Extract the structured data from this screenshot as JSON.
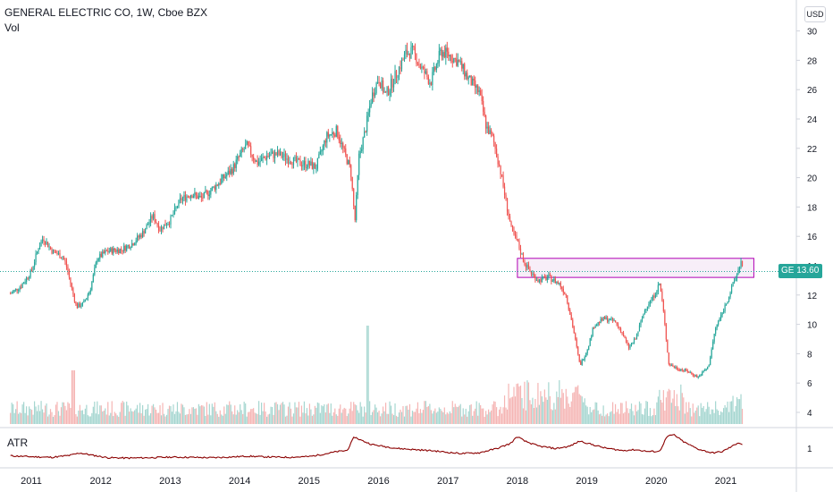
{
  "header": {
    "symbol_line": "GENERAL ELECTRIC CO, 1W, Cboe BZX",
    "volume_label": "Vol",
    "currency": "USD"
  },
  "price_tag": {
    "symbol": "GE",
    "value": "13.60",
    "text": "GE  13.60"
  },
  "atr": {
    "label": "ATR",
    "tick_label": "1"
  },
  "chart_data": {
    "type": "candlestick",
    "y_ticks": [
      "4",
      "6",
      "8",
      "10",
      "12",
      "14",
      "16",
      "18",
      "20",
      "22",
      "24",
      "26",
      "28",
      "30"
    ],
    "x_ticks": [
      "2011",
      "2012",
      "2013",
      "2014",
      "2015",
      "2016",
      "2017",
      "2018",
      "2019",
      "2020",
      "2021"
    ],
    "ylim": [
      3,
      31
    ],
    "colors": {
      "up": "#26a69a",
      "down": "#ef5350",
      "box_fill": "#f3e5f5",
      "box_border": "#b000b5",
      "atr_line": "#8b0000"
    },
    "resistance_zone": {
      "low": 13.2,
      "high": 14.5,
      "x_start": 2018.0,
      "x_end": 2021.25
    },
    "last_price": 13.6,
    "price_path": [
      [
        2010.7,
        12.1
      ],
      [
        2010.85,
        12.6
      ],
      [
        2011.0,
        13.6
      ],
      [
        2011.1,
        15.2
      ],
      [
        2011.17,
        15.9
      ],
      [
        2011.3,
        15.0
      ],
      [
        2011.45,
        14.6
      ],
      [
        2011.5,
        14.1
      ],
      [
        2011.58,
        12.5
      ],
      [
        2011.65,
        11.2
      ],
      [
        2011.75,
        11.4
      ],
      [
        2011.85,
        12.4
      ],
      [
        2011.95,
        14.5
      ],
      [
        2012.1,
        15.0
      ],
      [
        2012.3,
        15.1
      ],
      [
        2012.45,
        15.5
      ],
      [
        2012.6,
        16.2
      ],
      [
        2012.75,
        17.4
      ],
      [
        2012.85,
        16.5
      ],
      [
        2013.0,
        17.1
      ],
      [
        2013.15,
        18.5
      ],
      [
        2013.3,
        18.9
      ],
      [
        2013.45,
        18.6
      ],
      [
        2013.6,
        19.2
      ],
      [
        2013.75,
        19.9
      ],
      [
        2013.9,
        20.6
      ],
      [
        2014.0,
        21.5
      ],
      [
        2014.1,
        22.2
      ],
      [
        2014.25,
        21.0
      ],
      [
        2014.4,
        21.5
      ],
      [
        2014.55,
        21.6
      ],
      [
        2014.7,
        21.3
      ],
      [
        2014.85,
        21.0
      ],
      [
        2015.0,
        20.9
      ],
      [
        2015.1,
        20.7
      ],
      [
        2015.25,
        22.8
      ],
      [
        2015.4,
        23.2
      ],
      [
        2015.5,
        21.8
      ],
      [
        2015.6,
        20.5
      ],
      [
        2015.66,
        17.0
      ],
      [
        2015.72,
        21.5
      ],
      [
        2015.8,
        23.0
      ],
      [
        2015.9,
        25.5
      ],
      [
        2016.0,
        26.8
      ],
      [
        2016.1,
        25.6
      ],
      [
        2016.25,
        27.0
      ],
      [
        2016.4,
        28.5
      ],
      [
        2016.5,
        28.6
      ],
      [
        2016.6,
        27.6
      ],
      [
        2016.75,
        26.5
      ],
      [
        2016.9,
        28.6
      ],
      [
        2017.0,
        28.4
      ],
      [
        2017.15,
        27.9
      ],
      [
        2017.3,
        26.7
      ],
      [
        2017.45,
        25.8
      ],
      [
        2017.55,
        23.5
      ],
      [
        2017.65,
        22.6
      ],
      [
        2017.75,
        20.6
      ],
      [
        2017.85,
        18.0
      ],
      [
        2017.92,
        16.3
      ],
      [
        2018.0,
        15.6
      ],
      [
        2018.1,
        14.2
      ],
      [
        2018.2,
        13.5
      ],
      [
        2018.3,
        13.0
      ],
      [
        2018.45,
        13.2
      ],
      [
        2018.6,
        12.8
      ],
      [
        2018.7,
        12.0
      ],
      [
        2018.8,
        9.8
      ],
      [
        2018.9,
        7.2
      ],
      [
        2019.0,
        8.2
      ],
      [
        2019.1,
        9.9
      ],
      [
        2019.25,
        10.4
      ],
      [
        2019.4,
        10.2
      ],
      [
        2019.5,
        9.5
      ],
      [
        2019.6,
        8.4
      ],
      [
        2019.7,
        9.0
      ],
      [
        2019.85,
        11.2
      ],
      [
        2019.95,
        11.8
      ],
      [
        2020.05,
        12.8
      ],
      [
        2020.1,
        11.0
      ],
      [
        2020.18,
        7.3
      ],
      [
        2020.3,
        7.0
      ],
      [
        2020.45,
        6.8
      ],
      [
        2020.6,
        6.4
      ],
      [
        2020.75,
        7.1
      ],
      [
        2020.85,
        9.7
      ],
      [
        2020.95,
        10.8
      ],
      [
        2021.05,
        12.0
      ],
      [
        2021.15,
        13.3
      ],
      [
        2021.22,
        14.3
      ],
      [
        2021.25,
        13.6
      ]
    ],
    "atr_path": [
      [
        2010.7,
        0.4
      ],
      [
        2011.0,
        0.35
      ],
      [
        2011.3,
        0.32
      ],
      [
        2011.55,
        0.42
      ],
      [
        2011.7,
        0.55
      ],
      [
        2011.9,
        0.42
      ],
      [
        2012.1,
        0.3
      ],
      [
        2012.4,
        0.28
      ],
      [
        2012.7,
        0.3
      ],
      [
        2013.0,
        0.33
      ],
      [
        2013.3,
        0.32
      ],
      [
        2013.6,
        0.3
      ],
      [
        2013.9,
        0.34
      ],
      [
        2014.1,
        0.38
      ],
      [
        2014.4,
        0.34
      ],
      [
        2014.7,
        0.32
      ],
      [
        2015.0,
        0.36
      ],
      [
        2015.2,
        0.48
      ],
      [
        2015.4,
        0.62
      ],
      [
        2015.55,
        0.68
      ],
      [
        2015.65,
        1.4
      ],
      [
        2015.75,
        1.22
      ],
      [
        2015.9,
        1.0
      ],
      [
        2016.1,
        0.88
      ],
      [
        2016.3,
        0.78
      ],
      [
        2016.55,
        0.72
      ],
      [
        2016.8,
        0.66
      ],
      [
        2017.0,
        0.58
      ],
      [
        2017.2,
        0.52
      ],
      [
        2017.45,
        0.56
      ],
      [
        2017.7,
        0.78
      ],
      [
        2017.9,
        1.05
      ],
      [
        2018.0,
        1.42
      ],
      [
        2018.1,
        1.18
      ],
      [
        2018.3,
        0.92
      ],
      [
        2018.55,
        0.78
      ],
      [
        2018.75,
        0.9
      ],
      [
        2018.9,
        1.18
      ],
      [
        2019.05,
        1.02
      ],
      [
        2019.25,
        0.82
      ],
      [
        2019.5,
        0.68
      ],
      [
        2019.7,
        0.72
      ],
      [
        2019.9,
        0.62
      ],
      [
        2020.05,
        0.64
      ],
      [
        2020.15,
        1.4
      ],
      [
        2020.25,
        1.52
      ],
      [
        2020.4,
        1.12
      ],
      [
        2020.6,
        0.76
      ],
      [
        2020.8,
        0.55
      ],
      [
        2020.95,
        0.62
      ],
      [
        2021.1,
        0.92
      ],
      [
        2021.18,
        1.1
      ],
      [
        2021.25,
        0.98
      ]
    ],
    "atr_ylim": [
      0.0,
      1.7
    ]
  }
}
